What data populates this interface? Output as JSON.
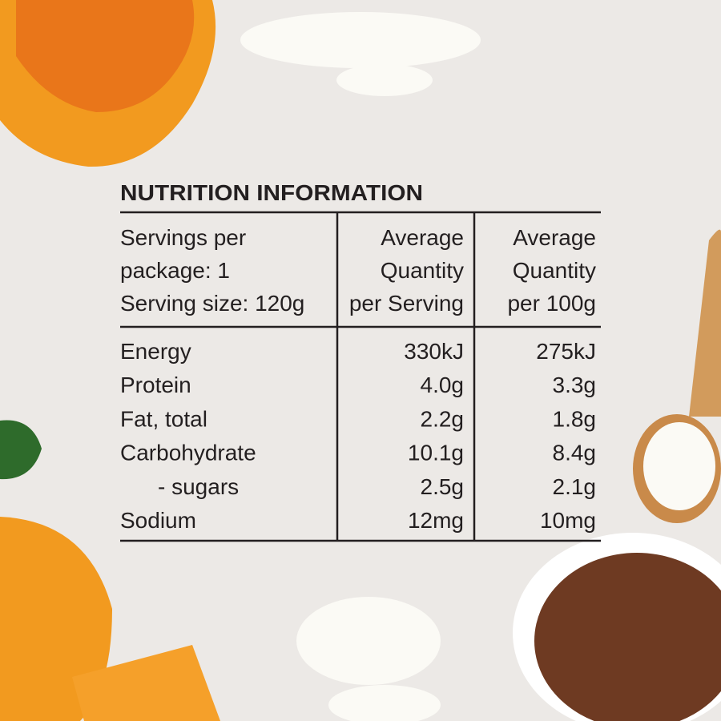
{
  "header": {
    "title": "NUTRITION INFORMATION"
  },
  "table": {
    "columns": [
      [
        "Servings per",
        "package: 1",
        "Serving size: 120g"
      ],
      [
        "Average",
        "Quantity",
        "per Serving"
      ],
      [
        "Average",
        "Quantity",
        "per 100g"
      ]
    ],
    "rows": [
      [
        "Energy",
        "330kJ",
        "275kJ"
      ],
      [
        "Protein",
        "4.0g",
        "3.3g"
      ],
      [
        "Fat, total",
        "2.2g",
        "1.8g"
      ],
      [
        "Carbohydrate",
        "10.1g",
        "8.4g"
      ],
      [
        "- sugars",
        "2.5g",
        "2.1g"
      ],
      [
        "Sodium",
        "12mg",
        "10mg"
      ]
    ]
  }
}
